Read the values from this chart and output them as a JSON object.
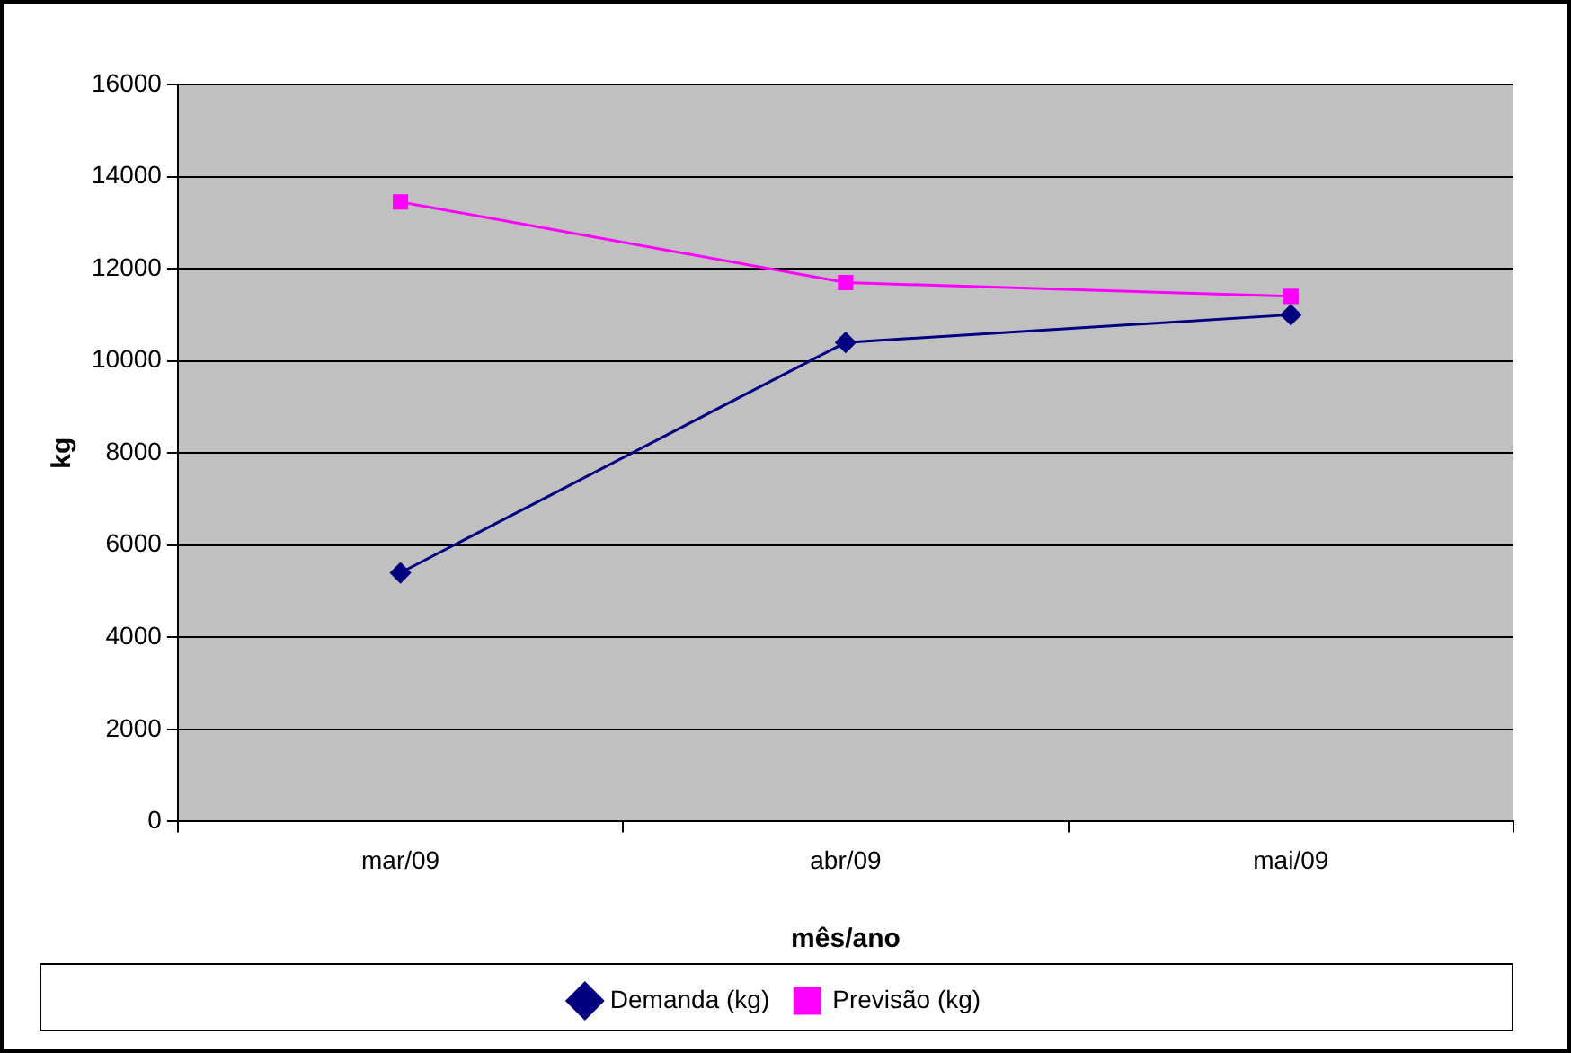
{
  "chart_data": {
    "type": "line",
    "xlabel": "mês/ano",
    "ylabel": "kg",
    "categories": [
      "mar/09",
      "abr/09",
      "mai/09"
    ],
    "series": [
      {
        "name": "Demanda (kg)",
        "color": "#000080",
        "marker": "diamond",
        "values": [
          5400,
          10400,
          11000
        ]
      },
      {
        "name": "Previsão (kg)",
        "color": "#ff00ff",
        "marker": "square",
        "values": [
          13450,
          11700,
          11400
        ]
      }
    ],
    "ylim": [
      0,
      16000
    ],
    "yticks": [
      0,
      2000,
      4000,
      6000,
      8000,
      10000,
      12000,
      14000,
      16000
    ],
    "grid": "y",
    "legend": "bottom",
    "line_style": "solid"
  }
}
